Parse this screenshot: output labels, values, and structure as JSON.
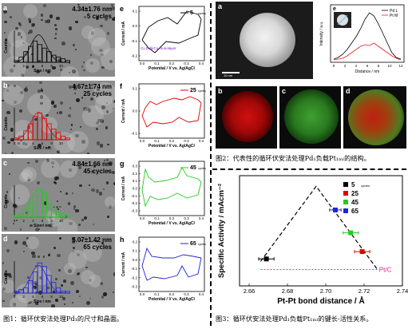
{
  "fig1": {
    "caption": "图1：循环伏安法处理Pd₁的尺寸和晶面。",
    "panels": [
      {
        "letter": "a",
        "size": "4.34±1.76 nm",
        "cycles": "5",
        "cycles_word": "cycles"
      },
      {
        "letter": "b",
        "size": "4.67±1.74 nm",
        "cycles": "25",
        "cycles_word": "cycles"
      },
      {
        "letter": "c",
        "size": "4.84±1.66 nm",
        "cycles": "45",
        "cycles_word": "cycles"
      },
      {
        "letter": "d",
        "size": "5.07±1.42 nm",
        "cycles": "65",
        "cycles_word": "cycles"
      }
    ],
    "cv_panels": [
      {
        "letter": "e",
        "legend": "5",
        "legend_word": "cycles",
        "annotation": "Cu bulk/Cu monolayer"
      },
      {
        "letter": "f",
        "legend": "25",
        "legend_word": "cycles"
      },
      {
        "letter": "g",
        "legend": "45",
        "legend_word": "cycles"
      },
      {
        "letter": "h",
        "legend": "65",
        "legend_word": "cycles"
      }
    ],
    "hist_xlabel": "Size / nm",
    "hist_ylabel": "Counts",
    "cv_ylabel": "Current / mA",
    "cv_xlabel": "Potential / V vs. Ag/AgCl",
    "cv_xticks": [
      "0.0",
      "0.1",
      "0.2",
      "0.3",
      "0.4"
    ],
    "cv_yticks_e": [
      "0.1",
      "0.0",
      "-0.1",
      "-0.2"
    ],
    "cv_yticks_f": [
      "0.1",
      "0.0",
      "-0.1"
    ],
    "cv_yticks_g": [
      "0.3",
      "0.2",
      "0.1",
      "0.0",
      "-0.1",
      "-0.2",
      "-0.3"
    ],
    "cv_yticks_h": [
      "0.2",
      "0.1",
      "0.0",
      "-0.1",
      "-0.2",
      "-0.3"
    ],
    "hist_xticks": [
      "0",
      "2",
      "4",
      "6",
      "8",
      "10"
    ]
  },
  "fig2": {
    "caption": "图2：代表性的循环伏安法处理Pd₁负载Pt₁ₘₗ的结构。",
    "panel_letters": [
      "a",
      "b",
      "c",
      "d",
      "e"
    ],
    "line_legend": [
      {
        "name": "Pd L",
        "color": "#000000"
      },
      {
        "name": "Pt M",
        "color": "#e02020"
      }
    ],
    "xlabel": "Distance / nm",
    "ylabel": "Intensity / a.u.",
    "xticks": [
      "0",
      "2",
      "4",
      "6",
      "8",
      "10",
      "12"
    ],
    "scalebar": "10 nm"
  },
  "fig3": {
    "caption": "图3：循环伏安法处理Pd₁负载Pt₁ₘₗ的键长-活性关系。",
    "xlabel": "Pt-Pt bond distance / Å",
    "ylabel": "Specific Activity / mAcm⁻²",
    "xticks": [
      "2.66",
      "2.68",
      "2.70",
      "2.72",
      "2.74"
    ],
    "ptc_label": "Pt/C",
    "legend": [
      {
        "label": "5",
        "sub": "cycles",
        "color": "#000000"
      },
      {
        "label": "25",
        "color": "#e00000"
      },
      {
        "label": "45",
        "color": "#22cc22"
      },
      {
        "label": "65",
        "color": "#2222dd"
      }
    ]
  },
  "chart_data": [
    {
      "type": "scatter",
      "title": "",
      "xlabel": "Pt-Pt bond distance / Å",
      "ylabel": "Specific Activity / mAcm⁻²",
      "xlim": [
        2.655,
        2.74
      ],
      "ylim": [
        0,
        1.35
      ],
      "series": [
        {
          "name": "5",
          "color": "#000000",
          "points": [
            {
              "x": 2.669,
              "y": 0.33,
              "xerr": 0.004
            }
          ]
        },
        {
          "name": "25",
          "color": "#e00000",
          "points": [
            {
              "x": 2.719,
              "y": 0.42,
              "xerr": 0.004
            }
          ]
        },
        {
          "name": "45",
          "color": "#22cc22",
          "points": [
            {
              "x": 2.713,
              "y": 0.65,
              "xerr": 0.004
            }
          ]
        },
        {
          "name": "65",
          "color": "#2222dd",
          "points": [
            {
              "x": 2.705,
              "y": 0.93,
              "xerr": 0.003
            }
          ]
        }
      ],
      "trend_line": [
        {
          "x": 2.666,
          "y": 0.3
        },
        {
          "x": 2.695,
          "y": 1.22
        },
        {
          "x": 2.727,
          "y": 0.2
        }
      ],
      "reference": {
        "name": "Pt/C",
        "y": 0.2,
        "color": "#e0208f"
      }
    }
  ]
}
